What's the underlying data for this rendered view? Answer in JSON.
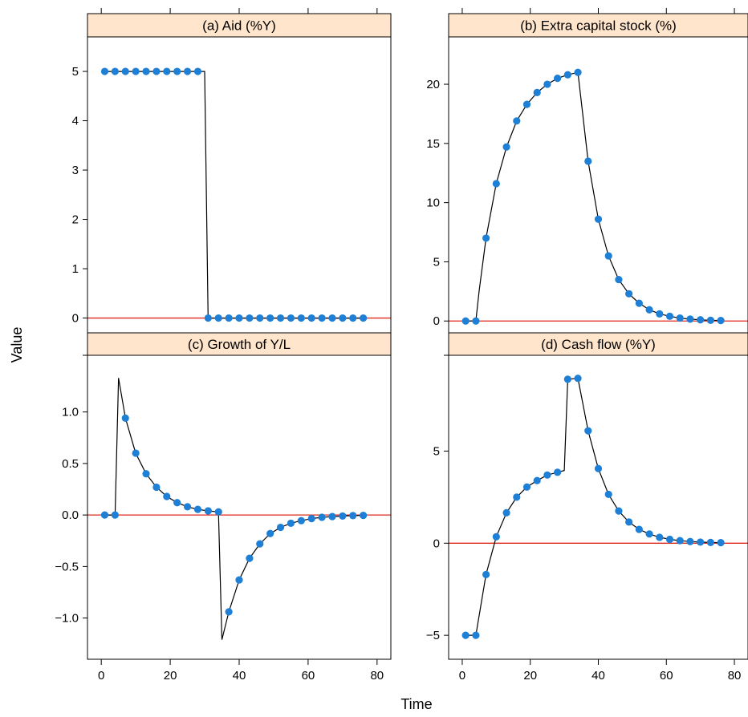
{
  "x_axis_title": "Time",
  "y_axis_title": "Value",
  "colors": {
    "strip": "#ffe5cc",
    "point": "#1e7fd6",
    "line": "#000000",
    "zero_line": "#e0281e"
  },
  "chart_data": [
    {
      "type": "line",
      "title": "(a) Aid (%Y)",
      "xlim": [
        -4,
        84
      ],
      "ylim": [
        -0.3,
        5.7
      ],
      "xticks": [
        0,
        20,
        40,
        60,
        80
      ],
      "yticks": [
        0,
        1,
        2,
        3,
        4,
        5
      ],
      "ytick_labels": [
        "0",
        "1",
        "2",
        "3",
        "4",
        "5"
      ],
      "reference_line": 0,
      "line": {
        "x": [
          1,
          30,
          31,
          76
        ],
        "y": [
          5,
          5,
          0,
          0
        ]
      },
      "points": {
        "x": [
          1,
          4,
          7,
          10,
          13,
          16,
          19,
          22,
          25,
          28,
          31,
          34,
          37,
          40,
          43,
          46,
          49,
          52,
          55,
          58,
          61,
          64,
          67,
          70,
          73,
          76
        ],
        "y": [
          5,
          5,
          5,
          5,
          5,
          5,
          5,
          5,
          5,
          5,
          0,
          0,
          0,
          0,
          0,
          0,
          0,
          0,
          0,
          0,
          0,
          0,
          0,
          0,
          0,
          0
        ]
      }
    },
    {
      "type": "line",
      "title": "(b) Extra capital stock (%)",
      "xlim": [
        -4,
        84
      ],
      "ylim": [
        -1,
        24
      ],
      "xticks": [
        0,
        20,
        40,
        60,
        80
      ],
      "yticks": [
        0,
        5,
        10,
        15,
        20
      ],
      "ytick_labels": [
        "0",
        "5",
        "10",
        "15",
        "20"
      ],
      "reference_line": 0,
      "line": {
        "x": [
          1,
          4,
          5,
          7,
          10,
          13,
          16,
          19,
          22,
          25,
          28,
          31,
          34,
          37,
          40,
          43,
          46,
          49,
          52,
          55,
          58,
          61,
          64,
          67,
          70,
          73,
          76
        ],
        "y": [
          0,
          0,
          2.6,
          7.0,
          11.6,
          14.7,
          16.9,
          18.3,
          19.3,
          20.0,
          20.5,
          20.8,
          21.0,
          13.5,
          8.6,
          5.5,
          3.5,
          2.3,
          1.5,
          0.95,
          0.6,
          0.4,
          0.25,
          0.16,
          0.1,
          0.06,
          0.04
        ]
      },
      "points": {
        "x": [
          1,
          4,
          7,
          10,
          13,
          16,
          19,
          22,
          25,
          28,
          31,
          34,
          37,
          40,
          43,
          46,
          49,
          52,
          55,
          58,
          61,
          64,
          67,
          70,
          73,
          76
        ],
        "y": [
          0,
          0,
          7.0,
          11.6,
          14.7,
          16.9,
          18.3,
          19.3,
          20.0,
          20.5,
          20.8,
          21.0,
          13.5,
          8.6,
          5.5,
          3.5,
          2.3,
          1.5,
          0.95,
          0.6,
          0.4,
          0.25,
          0.16,
          0.1,
          0.06,
          0.04
        ]
      }
    },
    {
      "type": "line",
      "title": "(c) Growth of Y/L",
      "xlim": [
        -4,
        84
      ],
      "ylim": [
        -1.4,
        1.55
      ],
      "xticks": [
        0,
        20,
        40,
        60,
        80
      ],
      "yticks": [
        -1,
        -0.5,
        0,
        0.5,
        1
      ],
      "ytick_labels": [
        "−1.0",
        "−0.5",
        "0.0",
        "0.5",
        "1.0"
      ],
      "reference_line": 0,
      "line": {
        "x": [
          1,
          4,
          5,
          7,
          10,
          13,
          16,
          19,
          22,
          25,
          28,
          31,
          34,
          35,
          37,
          40,
          43,
          46,
          49,
          52,
          55,
          58,
          61,
          64,
          67,
          70,
          73,
          76
        ],
        "y": [
          0,
          0,
          1.33,
          0.94,
          0.6,
          0.4,
          0.27,
          0.18,
          0.12,
          0.08,
          0.055,
          0.04,
          0.03,
          -1.21,
          -0.94,
          -0.63,
          -0.42,
          -0.28,
          -0.18,
          -0.12,
          -0.08,
          -0.055,
          -0.035,
          -0.022,
          -0.015,
          -0.01,
          -0.006,
          -0.004
        ]
      },
      "points": {
        "x": [
          1,
          4,
          7,
          10,
          13,
          16,
          19,
          22,
          25,
          28,
          31,
          34,
          37,
          40,
          43,
          46,
          49,
          52,
          55,
          58,
          61,
          64,
          67,
          70,
          73,
          76
        ],
        "y": [
          0,
          0,
          0.94,
          0.6,
          0.4,
          0.27,
          0.18,
          0.12,
          0.08,
          0.055,
          0.04,
          0.03,
          -0.94,
          -0.63,
          -0.42,
          -0.28,
          -0.18,
          -0.12,
          -0.08,
          -0.055,
          -0.035,
          -0.022,
          -0.015,
          -0.01,
          -0.006,
          -0.004
        ]
      }
    },
    {
      "type": "line",
      "title": "(d) Cash flow (%Y)",
      "xlim": [
        -4,
        84
      ],
      "ylim": [
        -6.3,
        10.2
      ],
      "xticks": [
        0,
        20,
        40,
        60,
        80
      ],
      "yticks": [
        -5,
        0,
        5
      ],
      "ytick_labels": [
        "−5",
        "0",
        "5"
      ],
      "reference_line": 0,
      "line": {
        "x": [
          1,
          4,
          7,
          10,
          13,
          16,
          19,
          22,
          25,
          28,
          30,
          31,
          34,
          37,
          40,
          43,
          46,
          49,
          52,
          55,
          58,
          61,
          64,
          67,
          70,
          73,
          76
        ],
        "y": [
          -5,
          -5,
          -1.7,
          0.35,
          1.65,
          2.5,
          3.05,
          3.4,
          3.7,
          3.85,
          3.95,
          8.9,
          8.95,
          6.1,
          4.05,
          2.65,
          1.75,
          1.15,
          0.75,
          0.5,
          0.32,
          0.21,
          0.14,
          0.09,
          0.06,
          0.04,
          0.03
        ]
      },
      "points": {
        "x": [
          1,
          4,
          7,
          10,
          13,
          16,
          19,
          22,
          25,
          28,
          31,
          34,
          37,
          40,
          43,
          46,
          49,
          52,
          55,
          58,
          61,
          64,
          67,
          70,
          73,
          76
        ],
        "y": [
          -5,
          -5,
          -1.7,
          0.35,
          1.65,
          2.5,
          3.05,
          3.4,
          3.7,
          3.85,
          8.9,
          8.95,
          6.1,
          4.05,
          2.65,
          1.75,
          1.15,
          0.75,
          0.5,
          0.32,
          0.21,
          0.14,
          0.09,
          0.06,
          0.04,
          0.03
        ]
      }
    }
  ]
}
